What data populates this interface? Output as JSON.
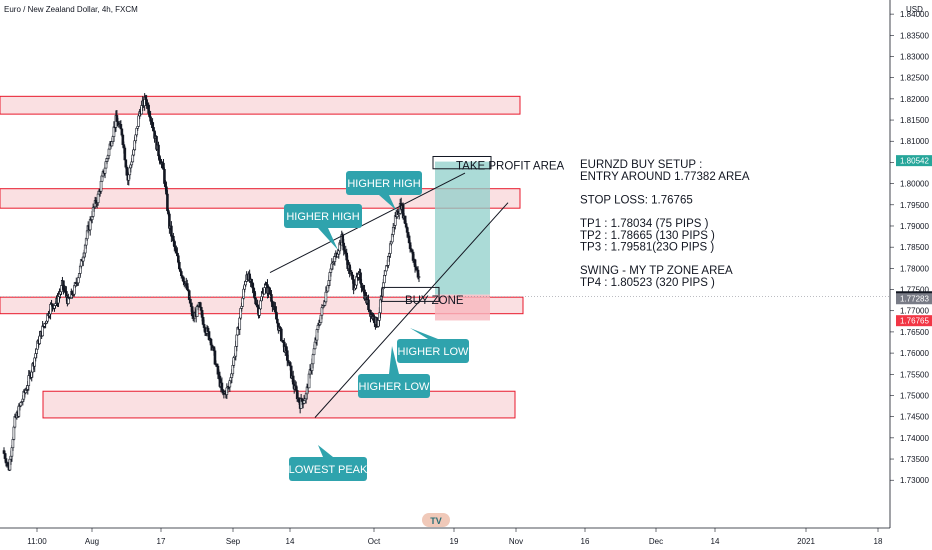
{
  "header": {
    "title": "Euro / New Zealand Dollar, 4h, FXCM"
  },
  "chart_data": {
    "type": "candlestick",
    "title": "Euro / New Zealand Dollar, 4h, FXCM",
    "currency_label": "USD",
    "ylim": [
      1.7225,
      1.8405
    ],
    "y_ticks": [
      "1.84000",
      "1.83500",
      "1.83000",
      "1.82500",
      "1.82000",
      "1.81500",
      "1.81000",
      "1.80500",
      "1.80000",
      "1.79500",
      "1.79000",
      "1.78500",
      "1.78000",
      "1.77500",
      "1.77000",
      "1.76500",
      "1.76000",
      "1.75500",
      "1.75000",
      "1.74500",
      "1.74000",
      "1.73500",
      "1.73000"
    ],
    "x_ticks": [
      "11:00",
      "Aug",
      "17",
      "Sep",
      "14",
      "Oct",
      "19",
      "Nov",
      "16",
      "Dec",
      "14",
      "2021",
      "18"
    ],
    "price_path": [
      1.737,
      1.733,
      1.744,
      1.748,
      1.752,
      1.757,
      1.763,
      1.767,
      1.771,
      1.772,
      1.776,
      1.772,
      1.775,
      1.78,
      1.787,
      1.793,
      1.797,
      1.803,
      1.809,
      1.815,
      1.812,
      1.801,
      1.808,
      1.817,
      1.82,
      1.815,
      1.808,
      1.803,
      1.79,
      1.784,
      1.779,
      1.775,
      1.768,
      1.771,
      1.766,
      1.763,
      1.756,
      1.75,
      1.752,
      1.76,
      1.77,
      1.779,
      1.775,
      1.77,
      1.776,
      1.774,
      1.768,
      1.763,
      1.758,
      1.752,
      1.748,
      1.75,
      1.758,
      1.766,
      1.772,
      1.779,
      1.783,
      1.787,
      1.781,
      1.776,
      1.778,
      1.773,
      1.769,
      1.767,
      1.776,
      1.784,
      1.792,
      1.795,
      1.789,
      1.782,
      1.778
    ],
    "price_labels": [
      {
        "text": "1.80542",
        "color": "#26a69a"
      },
      {
        "text": "1.77330",
        "color": "#131722"
      },
      {
        "text": "1.77283",
        "color": "#787b86"
      },
      {
        "text": "1.76765",
        "color": "#f23645"
      }
    ],
    "zones": [
      {
        "from": 1.8164,
        "to": 1.8206
      },
      {
        "from": 1.7942,
        "to": 1.7988
      },
      {
        "from": 1.7693,
        "to": 1.7732
      },
      {
        "from": 1.7447,
        "to": 1.751
      }
    ],
    "take_profit_label": "TAKE PROFIT AREA",
    "buy_zone_label": "BUY ZONE",
    "callouts": [
      {
        "text": "HIGHER HIGH"
      },
      {
        "text": "HIGHER HIGH"
      },
      {
        "text": "HIGHER LOW"
      },
      {
        "text": "HIGHER LOW"
      },
      {
        "text": "LOWEST PEAK"
      }
    ],
    "setup_notes": [
      "EURNZD BUY SETUP :",
      "ENTRY AROUND 1.77382 AREA",
      "",
      "STOP LOSS:  1.76765",
      "",
      "TP1 : 1.78034 (75 PIPS )",
      "TP2 : 1.78665 (130 PIPS )",
      "TP3 : 1.79581(23O PIPS )",
      "",
      "SWING - MY TP ZONE AREA",
      "TP4 : 1.80523 (320 PIPS )"
    ],
    "colors": {
      "up": "#131722",
      "zone_fill": "#f5c6cb",
      "zone_border": "#e8192c",
      "target_fill": "#8fcfc9",
      "stop_fill": "#f8b7be",
      "callout": "#2fa3ad",
      "trendline": "#131722"
    },
    "logo_text": "TV"
  }
}
